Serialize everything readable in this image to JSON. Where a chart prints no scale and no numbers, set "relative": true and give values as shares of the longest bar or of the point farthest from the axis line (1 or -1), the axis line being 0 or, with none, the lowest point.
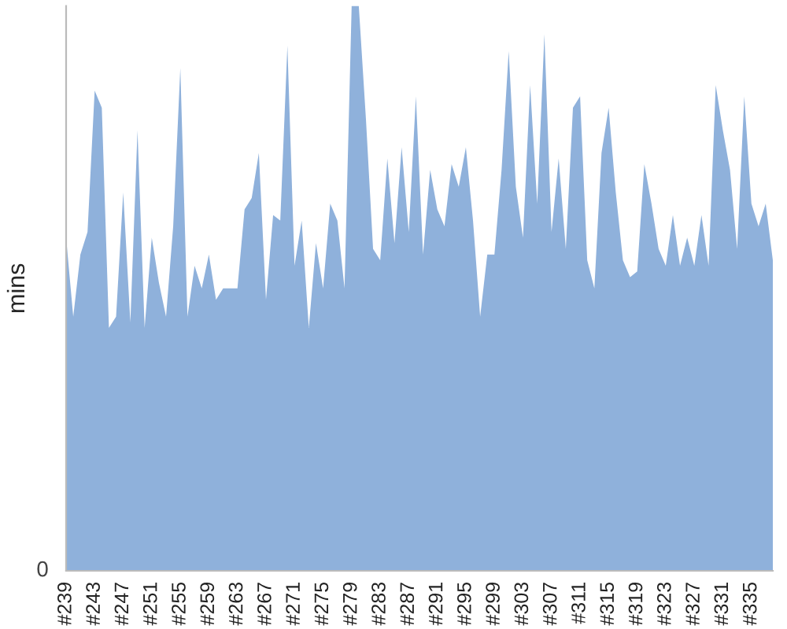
{
  "chart_data": {
    "type": "area",
    "ylabel": "mins",
    "relative": true,
    "color": "#8fb1db",
    "annotations": [
      "0"
    ],
    "grid": false,
    "legend": false,
    "categories": [
      "#239",
      null,
      null,
      null,
      "#243",
      null,
      null,
      null,
      "#247",
      null,
      null,
      null,
      "#251",
      null,
      null,
      null,
      "#255",
      null,
      null,
      null,
      "#259",
      null,
      null,
      null,
      "#263",
      null,
      null,
      null,
      "#267",
      null,
      null,
      null,
      "#271",
      null,
      null,
      null,
      "#275",
      null,
      null,
      null,
      "#279",
      null,
      null,
      null,
      "#283",
      null,
      null,
      null,
      "#287",
      null,
      null,
      null,
      "#291",
      null,
      null,
      null,
      "#295",
      null,
      null,
      null,
      "#299",
      null,
      null,
      null,
      "#303",
      null,
      null,
      null,
      "#307",
      null,
      null,
      null,
      "#311",
      null,
      null,
      null,
      "#315",
      null,
      null,
      null,
      "#319",
      null,
      null,
      null,
      "#323",
      null,
      null,
      null,
      "#327",
      null,
      null,
      null,
      "#331",
      null,
      null,
      null,
      "#335",
      null,
      null,
      null
    ],
    "values": [
      0.59,
      0.45,
      0.56,
      0.6,
      0.85,
      0.82,
      0.43,
      0.45,
      0.67,
      0.44,
      0.78,
      0.43,
      0.59,
      0.51,
      0.45,
      0.61,
      0.89,
      0.45,
      0.54,
      0.5,
      0.56,
      0.48,
      0.5,
      0.5,
      0.5,
      0.64,
      0.66,
      0.74,
      0.48,
      0.63,
      0.62,
      0.93,
      0.54,
      0.62,
      0.43,
      0.58,
      0.5,
      0.65,
      0.62,
      0.5,
      1,
      1,
      0.8,
      0.57,
      0.55,
      0.73,
      0.58,
      0.75,
      0.6,
      0.84,
      0.56,
      0.71,
      0.64,
      0.61,
      0.72,
      0.68,
      0.75,
      0.62,
      0.45,
      0.56,
      0.56,
      0.71,
      0.92,
      0.68,
      0.59,
      0.86,
      0.65,
      0.95,
      0.6,
      0.73,
      0.57,
      0.82,
      0.84,
      0.55,
      0.5,
      0.74,
      0.82,
      0.67,
      0.55,
      0.52,
      0.53,
      0.72,
      0.65,
      0.57,
      0.54,
      0.63,
      0.54,
      0.59,
      0.54,
      0.63,
      0.54,
      0.86,
      0.78,
      0.71,
      0.57,
      0.84,
      0.65,
      0.61,
      0.65,
      0.55
    ]
  }
}
